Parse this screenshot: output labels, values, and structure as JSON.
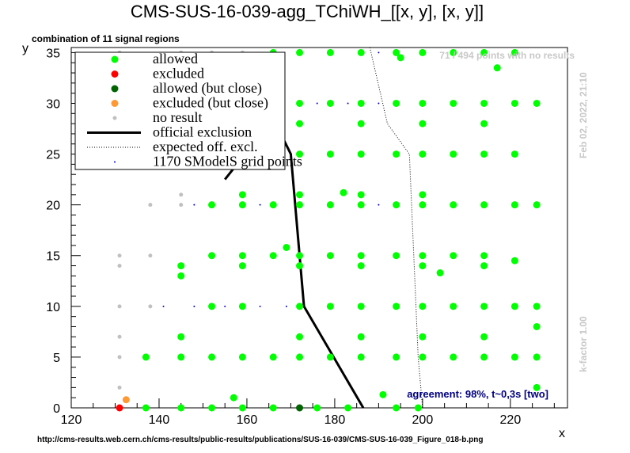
{
  "title": "CMS-SUS-16-039-agg_TChiWH_[[x, y], [x, y]]",
  "subtitle": "combination of 11 signal regions",
  "no_results_note": "71 / 494 points with no results",
  "timestamp": "Feb 02, 2022, 21:10",
  "kfactor": "k-factor 1.00",
  "agreement": "agreement: 98%, t~0,3s [two]",
  "url": "http://cms-results.web.cern.ch/cms-results/public-results/publications/SUS-16-039/CMS-SUS-16-039_Figure_018-b.png",
  "colors": {
    "allowed": "#00ff00",
    "excluded": "#ff0000",
    "allowed_close": "#006400",
    "excluded_close": "#ff9933",
    "no_result": "#c0c0c0",
    "grid": "#0000cc",
    "agreement": "#000080",
    "watermark": "#c8c8c8"
  },
  "chart_data": {
    "type": "scatter",
    "xlabel": "x",
    "ylabel": "y",
    "xlim": [
      120,
      233
    ],
    "ylim": [
      0,
      35.5
    ],
    "xticks": [
      120,
      140,
      160,
      180,
      200,
      220
    ],
    "yticks": [
      0,
      5,
      10,
      15,
      20,
      25,
      30,
      35
    ],
    "legend": [
      {
        "label": "allowed",
        "kind": "allowed"
      },
      {
        "label": "excluded",
        "kind": "excluded"
      },
      {
        "label": "allowed (but close)",
        "kind": "allowed_close"
      },
      {
        "label": "excluded (but close)",
        "kind": "excluded_close"
      },
      {
        "label": "no result",
        "kind": "no_result"
      },
      {
        "label": "official exclusion",
        "kind": "official"
      },
      {
        "label": "expected off. excl.",
        "kind": "expected"
      },
      {
        "label": "1170 SModelS grid points",
        "kind": "grid"
      }
    ],
    "official_exclusion": [
      [
        155,
        22.5
      ],
      [
        166,
        28.5
      ],
      [
        170,
        25
      ],
      [
        173,
        10
      ],
      [
        186.5,
        0
      ]
    ],
    "expected_exclusion": [
      [
        188,
        35.5
      ],
      [
        192,
        28
      ],
      [
        197,
        25
      ],
      [
        198,
        15
      ],
      [
        199,
        5
      ],
      [
        200,
        0
      ]
    ],
    "series": [
      {
        "kind": "allowed",
        "points": [
          [
            137,
            0
          ],
          [
            145,
            0
          ],
          [
            152,
            0
          ],
          [
            159,
            0
          ],
          [
            166,
            0
          ],
          [
            176,
            0
          ],
          [
            183,
            0
          ],
          [
            194,
            0
          ],
          [
            199,
            0
          ],
          [
            157,
            1
          ],
          [
            191,
            1.3
          ],
          [
            226,
            2
          ],
          [
            137,
            5
          ],
          [
            145,
            5
          ],
          [
            152,
            5
          ],
          [
            159,
            5
          ],
          [
            166,
            5
          ],
          [
            172,
            5
          ],
          [
            179,
            5
          ],
          [
            186,
            5
          ],
          [
            194,
            5
          ],
          [
            200,
            5
          ],
          [
            207,
            5
          ],
          [
            214,
            5
          ],
          [
            221,
            5
          ],
          [
            226,
            5
          ],
          [
            145,
            7
          ],
          [
            172,
            7
          ],
          [
            186,
            7
          ],
          [
            200,
            7
          ],
          [
            214,
            7
          ],
          [
            226,
            8
          ],
          [
            152,
            10
          ],
          [
            159,
            10
          ],
          [
            172,
            10
          ],
          [
            179,
            10
          ],
          [
            186,
            10
          ],
          [
            194,
            10
          ],
          [
            200,
            10
          ],
          [
            207,
            10
          ],
          [
            214,
            10
          ],
          [
            221,
            10
          ],
          [
            226,
            10
          ],
          [
            145,
            13
          ],
          [
            204,
            13.3
          ],
          [
            145,
            14
          ],
          [
            159,
            14
          ],
          [
            172,
            14
          ],
          [
            186,
            14
          ],
          [
            200,
            14
          ],
          [
            214,
            14
          ],
          [
            221,
            14.5
          ],
          [
            152,
            15
          ],
          [
            159,
            15
          ],
          [
            166,
            15
          ],
          [
            172,
            15
          ],
          [
            179,
            15
          ],
          [
            186,
            15
          ],
          [
            194,
            15
          ],
          [
            200,
            15
          ],
          [
            207,
            15
          ],
          [
            214,
            15
          ],
          [
            169,
            15.8
          ],
          [
            152,
            20
          ],
          [
            159,
            20
          ],
          [
            166,
            20
          ],
          [
            172,
            20
          ],
          [
            179,
            20
          ],
          [
            186,
            20
          ],
          [
            194,
            20
          ],
          [
            200,
            20
          ],
          [
            207,
            20
          ],
          [
            214,
            20
          ],
          [
            221,
            20
          ],
          [
            226,
            20
          ],
          [
            159,
            21
          ],
          [
            172,
            21
          ],
          [
            182,
            21.2
          ],
          [
            186,
            21
          ],
          [
            200,
            21
          ],
          [
            172,
            25
          ],
          [
            179,
            25
          ],
          [
            186,
            25
          ],
          [
            194,
            25
          ],
          [
            200,
            25
          ],
          [
            207,
            25
          ],
          [
            214,
            25
          ],
          [
            221,
            25
          ],
          [
            172,
            28
          ],
          [
            186,
            28
          ],
          [
            200,
            28
          ],
          [
            214,
            28
          ],
          [
            172,
            30
          ],
          [
            179,
            30
          ],
          [
            186,
            30
          ],
          [
            194,
            30
          ],
          [
            200,
            30
          ],
          [
            207,
            30
          ],
          [
            214,
            30
          ],
          [
            221,
            30
          ],
          [
            226,
            30
          ],
          [
            166,
            35
          ],
          [
            172,
            35
          ],
          [
            179,
            35
          ],
          [
            186,
            35
          ],
          [
            194,
            35
          ],
          [
            200,
            35
          ],
          [
            207,
            35
          ],
          [
            214,
            35
          ],
          [
            221,
            35
          ],
          [
            195,
            34.5
          ],
          [
            217,
            33.5
          ]
        ]
      },
      {
        "kind": "excluded",
        "points": [
          [
            131,
            0
          ]
        ]
      },
      {
        "kind": "allowed_close",
        "points": [
          [
            172,
            0
          ]
        ]
      },
      {
        "kind": "excluded_close",
        "points": [
          [
            132.5,
            0.8
          ]
        ]
      },
      {
        "kind": "no_result",
        "points": [
          [
            131,
            2
          ],
          [
            131,
            5
          ],
          [
            131,
            7
          ],
          [
            131,
            10
          ],
          [
            138,
            10
          ],
          [
            131,
            14
          ],
          [
            131,
            15
          ],
          [
            138,
            15
          ],
          [
            138,
            20
          ],
          [
            145,
            20
          ],
          [
            145,
            21
          ],
          [
            131,
            35
          ],
          [
            145,
            35
          ],
          [
            152,
            35
          ],
          [
            159,
            35
          ]
        ]
      },
      {
        "kind": "grid",
        "points": [
          [
            141,
            10
          ],
          [
            148,
            10
          ],
          [
            155,
            10
          ],
          [
            163,
            10
          ],
          [
            169,
            10
          ],
          [
            148,
            20
          ],
          [
            163,
            20
          ],
          [
            190,
            20
          ],
          [
            183,
            30
          ],
          [
            190,
            30
          ],
          [
            155,
            30
          ],
          [
            141,
            30
          ],
          [
            176,
            30
          ],
          [
            190,
            35
          ]
        ]
      }
    ]
  }
}
